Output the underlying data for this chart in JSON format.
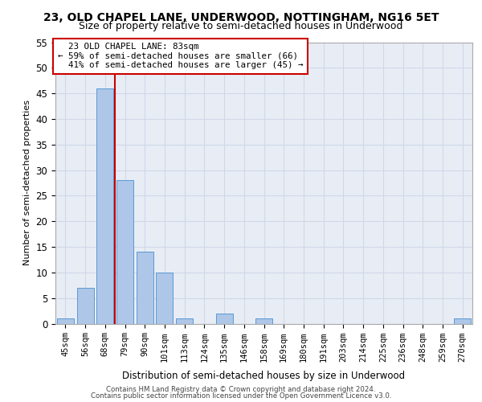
{
  "title_line1": "23, OLD CHAPEL LANE, UNDERWOOD, NOTTINGHAM, NG16 5ET",
  "title_line2": "Size of property relative to semi-detached houses in Underwood",
  "xlabel": "Distribution of semi-detached houses by size in Underwood",
  "ylabel": "Number of semi-detached properties",
  "categories": [
    "45sqm",
    "56sqm",
    "68sqm",
    "79sqm",
    "90sqm",
    "101sqm",
    "113sqm",
    "124sqm",
    "135sqm",
    "146sqm",
    "158sqm",
    "169sqm",
    "180sqm",
    "191sqm",
    "203sqm",
    "214sqm",
    "225sqm",
    "236sqm",
    "248sqm",
    "259sqm",
    "270sqm"
  ],
  "values": [
    1,
    7,
    46,
    28,
    14,
    10,
    1,
    0,
    2,
    0,
    1,
    0,
    0,
    0,
    0,
    0,
    0,
    0,
    0,
    0,
    1
  ],
  "bar_color": "#aec6e8",
  "bar_edge_color": "#5a9ad5",
  "vline_x": 2.5,
  "marker_label": "23 OLD CHAPEL LANE: 83sqm",
  "pct_smaller": 59,
  "n_smaller": 66,
  "pct_larger": 41,
  "n_larger": 45,
  "vline_color": "#cc0000",
  "ylim": [
    0,
    55
  ],
  "yticks": [
    0,
    5,
    10,
    15,
    20,
    25,
    30,
    35,
    40,
    45,
    50,
    55
  ],
  "grid_color": "#d0d8e8",
  "bg_color": "#e8edf5",
  "footer_line1": "Contains HM Land Registry data © Crown copyright and database right 2024.",
  "footer_line2": "Contains public sector information licensed under the Open Government Licence v3.0."
}
